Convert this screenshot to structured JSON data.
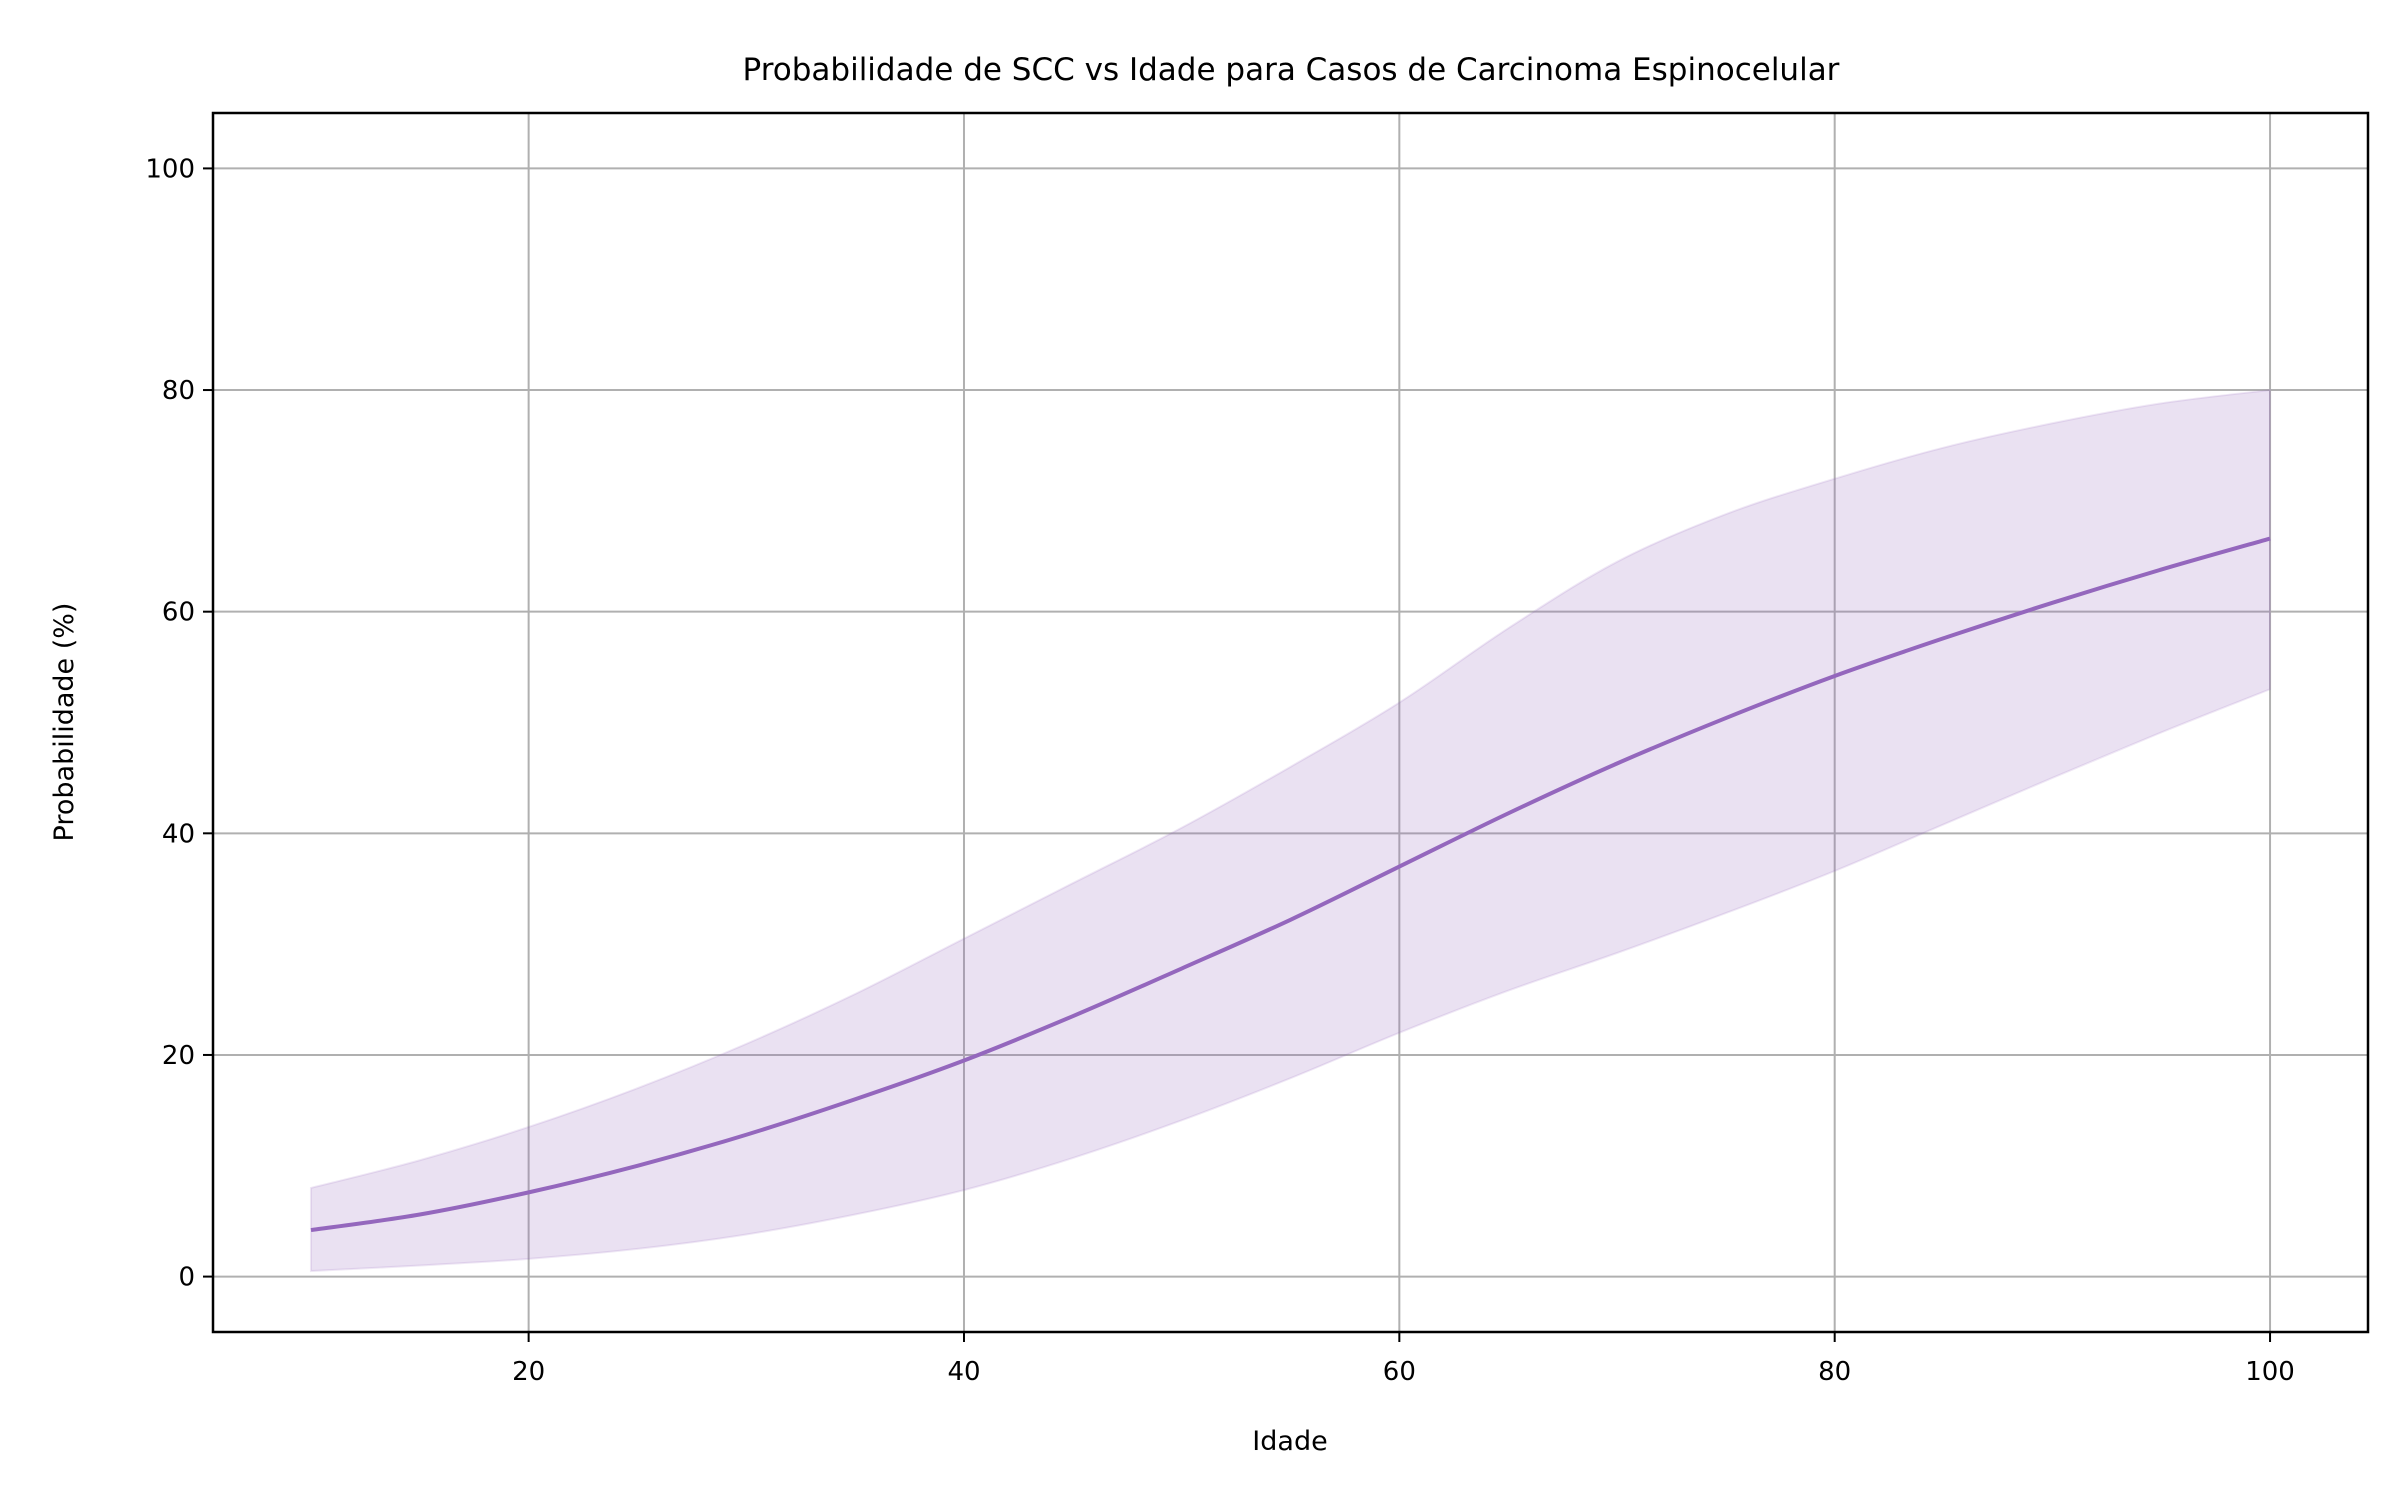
{
  "chart_data": {
    "type": "line",
    "title": "Probabilidade de SCC vs Idade para Casos de Carcinoma Espinocelular",
    "xlabel": "Idade",
    "ylabel": "Probabilidade (%)",
    "xlim": [
      5.5,
      104.5
    ],
    "ylim": [
      -5,
      105
    ],
    "xticks": [
      20,
      40,
      60,
      80,
      100
    ],
    "yticks": [
      0,
      20,
      40,
      60,
      80,
      100
    ],
    "grid": true,
    "colors": {
      "line": "#9467bd",
      "band": "#9467bd",
      "grid": "#b0b0b0"
    },
    "x": [
      10,
      15,
      20,
      25,
      30,
      35,
      40,
      45,
      50,
      55,
      60,
      65,
      70,
      75,
      80,
      85,
      90,
      95,
      100
    ],
    "series": [
      {
        "values": [
          4.2,
          5.6,
          7.6,
          10.0,
          12.8,
          16.0,
          19.5,
          23.5,
          27.8,
          32.2,
          37.0,
          41.8,
          46.3,
          50.4,
          54.2,
          57.6,
          60.8,
          63.8,
          66.6
        ]
      }
    ],
    "band": {
      "upper": [
        8.0,
        10.5,
        13.5,
        17.0,
        21.0,
        25.5,
        30.5,
        35.5,
        40.5,
        46.0,
        51.8,
        58.5,
        64.5,
        68.8,
        72.0,
        74.8,
        77.0,
        78.8,
        80.0
      ],
      "lower": [
        0.5,
        1.0,
        1.6,
        2.5,
        3.8,
        5.6,
        7.8,
        10.7,
        14.1,
        17.9,
        22.0,
        25.8,
        29.2,
        32.8,
        36.6,
        40.8,
        45.0,
        49.1,
        53.0
      ]
    }
  }
}
